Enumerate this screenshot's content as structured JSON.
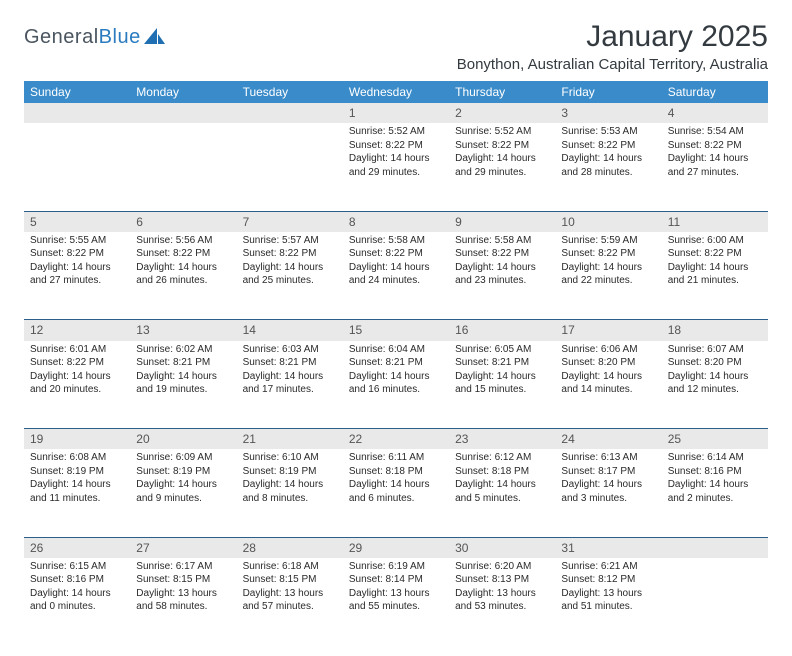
{
  "brand": {
    "general": "General",
    "blue": "Blue"
  },
  "title": "January 2025",
  "location": "Bonython, Australian Capital Territory, Australia",
  "colors": {
    "header_bg": "#3a8bc9",
    "header_fg": "#ffffff",
    "daynum_bg": "#e9e9e9",
    "row_divider": "#2b5e8a",
    "page_bg": "#ffffff",
    "text": "#2a2a2a"
  },
  "weekdays": [
    "Sunday",
    "Monday",
    "Tuesday",
    "Wednesday",
    "Thursday",
    "Friday",
    "Saturday"
  ],
  "weeks": [
    [
      null,
      null,
      null,
      {
        "n": "1",
        "sr": "Sunrise: 5:52 AM",
        "ss": "Sunset: 8:22 PM",
        "d1": "Daylight: 14 hours",
        "d2": "and 29 minutes."
      },
      {
        "n": "2",
        "sr": "Sunrise: 5:52 AM",
        "ss": "Sunset: 8:22 PM",
        "d1": "Daylight: 14 hours",
        "d2": "and 29 minutes."
      },
      {
        "n": "3",
        "sr": "Sunrise: 5:53 AM",
        "ss": "Sunset: 8:22 PM",
        "d1": "Daylight: 14 hours",
        "d2": "and 28 minutes."
      },
      {
        "n": "4",
        "sr": "Sunrise: 5:54 AM",
        "ss": "Sunset: 8:22 PM",
        "d1": "Daylight: 14 hours",
        "d2": "and 27 minutes."
      }
    ],
    [
      {
        "n": "5",
        "sr": "Sunrise: 5:55 AM",
        "ss": "Sunset: 8:22 PM",
        "d1": "Daylight: 14 hours",
        "d2": "and 27 minutes."
      },
      {
        "n": "6",
        "sr": "Sunrise: 5:56 AM",
        "ss": "Sunset: 8:22 PM",
        "d1": "Daylight: 14 hours",
        "d2": "and 26 minutes."
      },
      {
        "n": "7",
        "sr": "Sunrise: 5:57 AM",
        "ss": "Sunset: 8:22 PM",
        "d1": "Daylight: 14 hours",
        "d2": "and 25 minutes."
      },
      {
        "n": "8",
        "sr": "Sunrise: 5:58 AM",
        "ss": "Sunset: 8:22 PM",
        "d1": "Daylight: 14 hours",
        "d2": "and 24 minutes."
      },
      {
        "n": "9",
        "sr": "Sunrise: 5:58 AM",
        "ss": "Sunset: 8:22 PM",
        "d1": "Daylight: 14 hours",
        "d2": "and 23 minutes."
      },
      {
        "n": "10",
        "sr": "Sunrise: 5:59 AM",
        "ss": "Sunset: 8:22 PM",
        "d1": "Daylight: 14 hours",
        "d2": "and 22 minutes."
      },
      {
        "n": "11",
        "sr": "Sunrise: 6:00 AM",
        "ss": "Sunset: 8:22 PM",
        "d1": "Daylight: 14 hours",
        "d2": "and 21 minutes."
      }
    ],
    [
      {
        "n": "12",
        "sr": "Sunrise: 6:01 AM",
        "ss": "Sunset: 8:22 PM",
        "d1": "Daylight: 14 hours",
        "d2": "and 20 minutes."
      },
      {
        "n": "13",
        "sr": "Sunrise: 6:02 AM",
        "ss": "Sunset: 8:21 PM",
        "d1": "Daylight: 14 hours",
        "d2": "and 19 minutes."
      },
      {
        "n": "14",
        "sr": "Sunrise: 6:03 AM",
        "ss": "Sunset: 8:21 PM",
        "d1": "Daylight: 14 hours",
        "d2": "and 17 minutes."
      },
      {
        "n": "15",
        "sr": "Sunrise: 6:04 AM",
        "ss": "Sunset: 8:21 PM",
        "d1": "Daylight: 14 hours",
        "d2": "and 16 minutes."
      },
      {
        "n": "16",
        "sr": "Sunrise: 6:05 AM",
        "ss": "Sunset: 8:21 PM",
        "d1": "Daylight: 14 hours",
        "d2": "and 15 minutes."
      },
      {
        "n": "17",
        "sr": "Sunrise: 6:06 AM",
        "ss": "Sunset: 8:20 PM",
        "d1": "Daylight: 14 hours",
        "d2": "and 14 minutes."
      },
      {
        "n": "18",
        "sr": "Sunrise: 6:07 AM",
        "ss": "Sunset: 8:20 PM",
        "d1": "Daylight: 14 hours",
        "d2": "and 12 minutes."
      }
    ],
    [
      {
        "n": "19",
        "sr": "Sunrise: 6:08 AM",
        "ss": "Sunset: 8:19 PM",
        "d1": "Daylight: 14 hours",
        "d2": "and 11 minutes."
      },
      {
        "n": "20",
        "sr": "Sunrise: 6:09 AM",
        "ss": "Sunset: 8:19 PM",
        "d1": "Daylight: 14 hours",
        "d2": "and 9 minutes."
      },
      {
        "n": "21",
        "sr": "Sunrise: 6:10 AM",
        "ss": "Sunset: 8:19 PM",
        "d1": "Daylight: 14 hours",
        "d2": "and 8 minutes."
      },
      {
        "n": "22",
        "sr": "Sunrise: 6:11 AM",
        "ss": "Sunset: 8:18 PM",
        "d1": "Daylight: 14 hours",
        "d2": "and 6 minutes."
      },
      {
        "n": "23",
        "sr": "Sunrise: 6:12 AM",
        "ss": "Sunset: 8:18 PM",
        "d1": "Daylight: 14 hours",
        "d2": "and 5 minutes."
      },
      {
        "n": "24",
        "sr": "Sunrise: 6:13 AM",
        "ss": "Sunset: 8:17 PM",
        "d1": "Daylight: 14 hours",
        "d2": "and 3 minutes."
      },
      {
        "n": "25",
        "sr": "Sunrise: 6:14 AM",
        "ss": "Sunset: 8:16 PM",
        "d1": "Daylight: 14 hours",
        "d2": "and 2 minutes."
      }
    ],
    [
      {
        "n": "26",
        "sr": "Sunrise: 6:15 AM",
        "ss": "Sunset: 8:16 PM",
        "d1": "Daylight: 14 hours",
        "d2": "and 0 minutes."
      },
      {
        "n": "27",
        "sr": "Sunrise: 6:17 AM",
        "ss": "Sunset: 8:15 PM",
        "d1": "Daylight: 13 hours",
        "d2": "and 58 minutes."
      },
      {
        "n": "28",
        "sr": "Sunrise: 6:18 AM",
        "ss": "Sunset: 8:15 PM",
        "d1": "Daylight: 13 hours",
        "d2": "and 57 minutes."
      },
      {
        "n": "29",
        "sr": "Sunrise: 6:19 AM",
        "ss": "Sunset: 8:14 PM",
        "d1": "Daylight: 13 hours",
        "d2": "and 55 minutes."
      },
      {
        "n": "30",
        "sr": "Sunrise: 6:20 AM",
        "ss": "Sunset: 8:13 PM",
        "d1": "Daylight: 13 hours",
        "d2": "and 53 minutes."
      },
      {
        "n": "31",
        "sr": "Sunrise: 6:21 AM",
        "ss": "Sunset: 8:12 PM",
        "d1": "Daylight: 13 hours",
        "d2": "and 51 minutes."
      },
      null
    ]
  ]
}
